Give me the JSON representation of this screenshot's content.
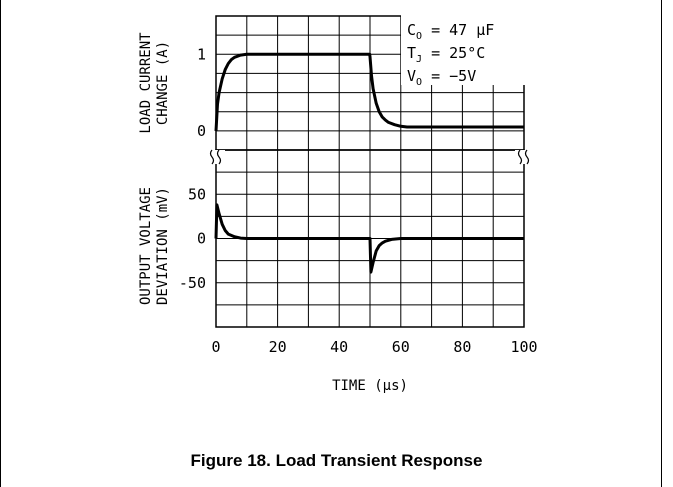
{
  "caption": "Figure 18. Load Transient Response",
  "chart_data": [
    {
      "type": "line",
      "panel": "top",
      "ylabel": [
        "LOAD CURRENT",
        "CHANGE (A)"
      ],
      "xlim": [
        0,
        100
      ],
      "ylim": [
        -0.25,
        1.5
      ],
      "yticks": [
        0,
        1
      ],
      "yticklabels": [
        "0",
        "1"
      ],
      "grid": true,
      "line_color": "#000000",
      "annotations": [
        "C_O = 47 μF",
        "T_J = 25°C",
        "V_O = −5V"
      ],
      "series": [
        {
          "x": [
            0,
            0.5,
            1,
            2,
            3,
            4,
            5,
            6,
            8,
            10,
            15,
            20,
            30,
            40,
            49.9,
            50,
            50.5,
            51,
            52,
            53,
            54,
            55,
            56,
            58,
            60,
            62,
            65,
            70,
            80,
            90,
            100
          ],
          "values": [
            0,
            0.35,
            0.5,
            0.68,
            0.8,
            0.88,
            0.93,
            0.96,
            0.99,
            1.0,
            1.0,
            1.0,
            1.0,
            1.0,
            1.0,
            0.97,
            0.72,
            0.55,
            0.36,
            0.25,
            0.18,
            0.14,
            0.11,
            0.08,
            0.06,
            0.05,
            0.05,
            0.05,
            0.05,
            0.05,
            0.05
          ]
        }
      ]
    },
    {
      "type": "line",
      "panel": "bottom",
      "ylabel": [
        "OUTPUT VOLTAGE",
        "DEVIATION (mV)"
      ],
      "xlabel": "TIME (μs)",
      "xlim": [
        0,
        100
      ],
      "ylim": [
        -100,
        100
      ],
      "xticks": [
        0,
        20,
        40,
        60,
        80,
        100
      ],
      "xticklabels": [
        "0",
        "20",
        "40",
        "60",
        "80",
        "100"
      ],
      "yticks": [
        50,
        0,
        -50
      ],
      "yticklabels": [
        "50",
        "0",
        "-50"
      ],
      "grid": true,
      "line_color": "#000000",
      "series": [
        {
          "x": [
            0,
            0.3,
            1,
            2,
            3,
            4,
            6,
            8,
            10,
            20,
            30,
            40,
            49.9,
            50,
            50.3,
            51,
            52,
            53,
            54,
            55,
            57,
            60,
            70,
            80,
            90,
            100
          ],
          "values": [
            0,
            38,
            28,
            16,
            9,
            5,
            2,
            0.5,
            0,
            0,
            0,
            0,
            0,
            0,
            -38,
            -27,
            -14,
            -8,
            -5,
            -3,
            -1,
            0,
            0,
            0,
            0,
            0
          ]
        }
      ]
    }
  ]
}
